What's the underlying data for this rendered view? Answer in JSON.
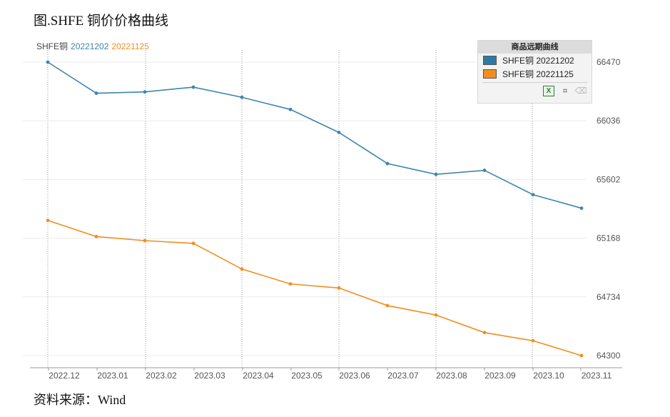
{
  "figure_title": "图.SHFE 铜价价格曲线",
  "source": "资料来源：Wind",
  "legend_top": {
    "prefix": "SHFE铜",
    "series_a": "20221202",
    "series_b": "20221125"
  },
  "panel": {
    "title": "商品远期曲线",
    "items": [
      {
        "label": "SHFE铜 20221202",
        "color": "#2f79a5"
      },
      {
        "label": "SHFE铜 20221125",
        "color": "#f28e1f"
      }
    ],
    "tools": [
      "excel-export",
      "crop",
      "eraser"
    ]
  },
  "colors": {
    "series_a": "#3d85ac",
    "series_b": "#f28e1f",
    "grid": "#c9c9c9",
    "axis_text": "#555555"
  },
  "chart_data": {
    "type": "line",
    "title": "",
    "xlabel": "",
    "ylabel": "",
    "categories": [
      "2022.12",
      "2023.01",
      "2023.02",
      "2023.03",
      "2023.04",
      "2023.05",
      "2023.06",
      "2023.07",
      "2023.08",
      "2023.09",
      "2023.10",
      "2023.11"
    ],
    "y_ticks": [
      64300,
      64734,
      65168,
      65602,
      66036,
      66470
    ],
    "ylim": [
      64300,
      66470
    ],
    "y_axis_position": "right",
    "grid": true,
    "legend_position": "top-right",
    "series": [
      {
        "name": "SHFE铜 20221202",
        "color": "#3d85ac",
        "values": [
          66470,
          66240,
          66250,
          66285,
          66210,
          66120,
          65950,
          65720,
          65640,
          65670,
          65490,
          65390
        ]
      },
      {
        "name": "SHFE铜 20221125",
        "color": "#f28e1f",
        "values": [
          65300,
          65180,
          65150,
          65130,
          64940,
          64830,
          64800,
          64670,
          64600,
          64470,
          64410,
          64300
        ]
      }
    ]
  }
}
